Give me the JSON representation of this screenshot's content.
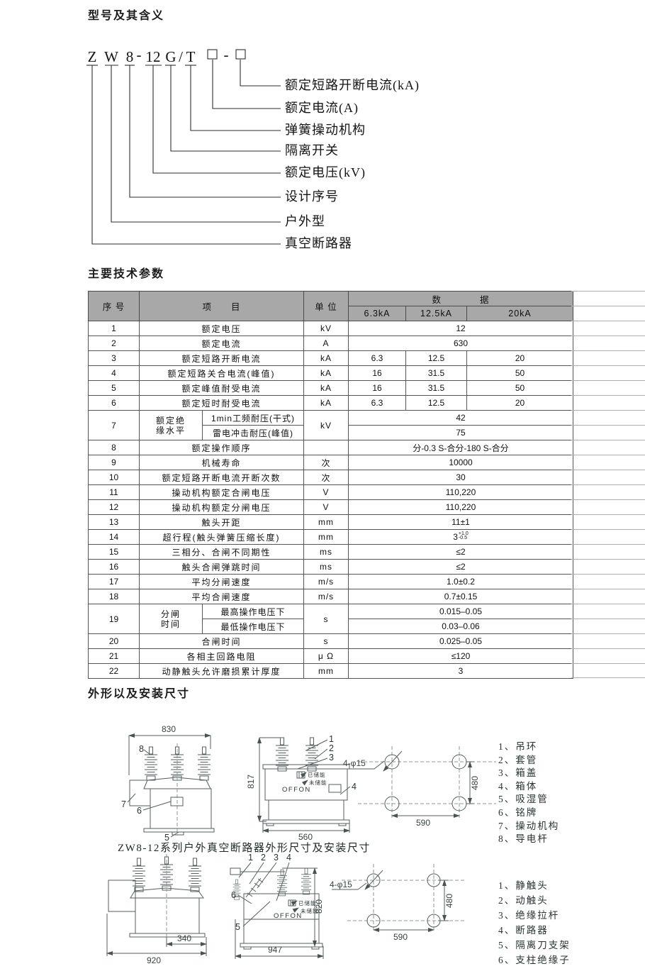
{
  "model_section": {
    "title": "型号及其含义",
    "chars": [
      "Z",
      "W",
      "8",
      "-",
      "12",
      "G",
      "/",
      "T",
      "-"
    ],
    "labels": [
      "额定短路开断电流(kA)",
      "额定电流(A)",
      "弹簧操动机构",
      "隔离开关",
      "额定电压(kV)",
      "设计序号",
      "户外型",
      "真空断路器"
    ]
  },
  "params_section": {
    "title": "主要技术参数",
    "header": {
      "no": "序 号",
      "item": "项　　目",
      "unit": "单 位",
      "data": "数　　　　据",
      "cols": [
        "6.3kA",
        "12.5kA",
        "20kA"
      ]
    },
    "rows": [
      {
        "no": "1",
        "item": "额定电压",
        "unit": "kV",
        "merged": "12"
      },
      {
        "no": "2",
        "item": "额定电流",
        "unit": "A",
        "merged": "630"
      },
      {
        "no": "3",
        "item": "额定短路开断电流",
        "unit": "kA",
        "values": [
          "6.3",
          "12.5",
          "20"
        ]
      },
      {
        "no": "4",
        "item": "额定短路关合电流(峰值)",
        "unit": "kA",
        "values": [
          "16",
          "31.5",
          "50"
        ]
      },
      {
        "no": "5",
        "item": "额定峰值耐受电流",
        "unit": "kA",
        "values": [
          "16",
          "31.5",
          "50"
        ]
      },
      {
        "no": "6",
        "item": "额定短时耐受电流",
        "unit": "kA",
        "values": [
          "6.3",
          "12.5",
          "20"
        ]
      },
      {
        "no": "7",
        "item_lines": [
          "额定绝",
          "缘水平"
        ],
        "unit": "kV",
        "sub": [
          {
            "item": "1min工频耐压(干式)",
            "merged": "42"
          },
          {
            "item": "雷电冲击耐压(峰值)",
            "merged": "75"
          }
        ]
      },
      {
        "no": "8",
        "item": "额定操作顺序",
        "unit": "",
        "merged": "分-0.3 S-合分-180 S-合分"
      },
      {
        "no": "9",
        "item": "机械寿命",
        "unit": "次",
        "merged": "10000"
      },
      {
        "no": "10",
        "item": "额定短路开断电流开断次数",
        "unit": "次",
        "merged": "30"
      },
      {
        "no": "11",
        "item": "操动机构额定合闸电压",
        "unit": "V",
        "merged": "110,220"
      },
      {
        "no": "12",
        "item": "操动机构额定分闸电压",
        "unit": "V",
        "merged": "110,220"
      },
      {
        "no": "13",
        "item": "触头开距",
        "unit": "mm",
        "merged": "11±1"
      },
      {
        "no": "14",
        "item": "超行程(触头弹簧压缩长度)",
        "unit": "mm",
        "merged": "3",
        "tol_top": "+1.0",
        "tol_bottom": "-0.5"
      },
      {
        "no": "15",
        "item": "三相分、合闸不同期性",
        "unit": "ms",
        "merged": "≤2"
      },
      {
        "no": "16",
        "item": "触头合闸弹跳时间",
        "unit": "ms",
        "merged": "≤2"
      },
      {
        "no": "17",
        "item": "平均分闸速度",
        "unit": "m/s",
        "merged": "1.0±0.2"
      },
      {
        "no": "18",
        "item": "平均合闸速度",
        "unit": "m/s",
        "merged": "0.7±0.15"
      },
      {
        "no": "19",
        "item_lines": [
          "分闸",
          "时间"
        ],
        "unit": "s",
        "sub": [
          {
            "item": "最高操作电压下",
            "merged": "0.015–0.05"
          },
          {
            "item": "最低操作电压下",
            "merged": "0.03–0.06"
          }
        ]
      },
      {
        "no": "20",
        "item": "合闸时间",
        "unit": "s",
        "merged": "0.025–0.05"
      },
      {
        "no": "21",
        "item": "各相主回路电阻",
        "unit": "μ Ω",
        "merged": "≤120"
      },
      {
        "no": "22",
        "item": "动静触头允许磨损累计厚度",
        "unit": "mm",
        "merged": "3"
      }
    ]
  },
  "outline_section": {
    "title": "外形以及安装尺寸",
    "caption": "ZW8-12系列户外真空断路器外形尺寸及安装尺寸",
    "drawing_a": {
      "dims": {
        "width": "830",
        "height": "817",
        "depth": "560",
        "holes": "4-φ15",
        "hole_span_x": "590",
        "hole_span_y": "480"
      },
      "panel": {
        "charged": "已储能",
        "uncharged": "未储能",
        "offon": "OFFON"
      },
      "callouts_front": [
        "8",
        "7",
        "6",
        "5"
      ],
      "callouts_side": [
        "1",
        "2",
        "3",
        "4"
      ]
    },
    "parts_a": [
      "1、吊环",
      "2、套管",
      "3、箱盖",
      "4、箱体",
      "5、吸湿管",
      "6、铭牌",
      "7、操动机构",
      "8、导电杆"
    ],
    "drawing_b": {
      "dims": {
        "front_inner": "340",
        "front_outer": "920",
        "height": "820",
        "depth": "947",
        "holes": "4-φ15",
        "hole_span_x": "590",
        "hole_span_y": "480"
      },
      "panel": {
        "charged": "已储能",
        "uncharged": "未储能",
        "offon": "OFFON"
      },
      "callouts_side_top": [
        "1",
        "2",
        "3",
        "4"
      ],
      "callouts_side_left": [
        "6",
        "5"
      ]
    },
    "parts_b": [
      "1、静触头",
      "2、动触头",
      "3、绝缘拉杆",
      "4、断路器",
      "5、隔离刀支架",
      "6、支柱绝缘子"
    ]
  }
}
